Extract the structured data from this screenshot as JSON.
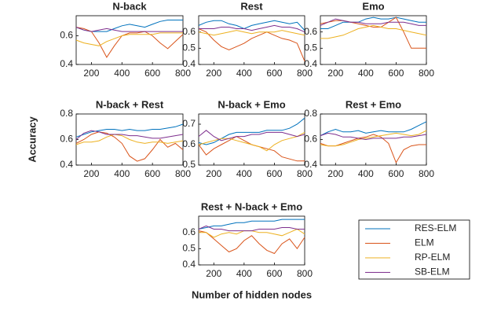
{
  "chart_data": [
    {
      "type": "line",
      "title": "N-back",
      "x": [
        100,
        150,
        200,
        250,
        300,
        350,
        400,
        450,
        500,
        550,
        600,
        650,
        700,
        750,
        800
      ],
      "xlim": [
        100,
        800
      ],
      "xticks": [
        200,
        400,
        600,
        800
      ],
      "ylim": [
        0.4,
        0.74
      ],
      "yticks": [
        0.4,
        0.6
      ],
      "series": [
        {
          "name": "RES-ELM",
          "color": "#0072bd",
          "values": [
            0.66,
            0.64,
            0.63,
            0.63,
            0.63,
            0.65,
            0.67,
            0.68,
            0.67,
            0.66,
            0.68,
            0.7,
            0.71,
            0.71,
            0.71
          ]
        },
        {
          "name": "ELM",
          "color": "#d95319",
          "values": [
            0.66,
            0.65,
            0.63,
            0.55,
            0.45,
            0.53,
            0.6,
            0.62,
            0.62,
            0.63,
            0.6,
            0.55,
            0.51,
            0.56,
            0.61
          ]
        },
        {
          "name": "RP-ELM",
          "color": "#edb120",
          "values": [
            0.57,
            0.55,
            0.54,
            0.53,
            0.56,
            0.58,
            0.6,
            0.61,
            0.61,
            0.61,
            0.61,
            0.62,
            0.62,
            0.62,
            0.62
          ]
        },
        {
          "name": "SB-ELM",
          "color": "#7e2f8e",
          "values": [
            0.66,
            0.64,
            0.63,
            0.64,
            0.65,
            0.64,
            0.63,
            0.63,
            0.63,
            0.63,
            0.63,
            0.63,
            0.63,
            0.63,
            0.63
          ]
        }
      ]
    },
    {
      "type": "line",
      "title": "Rest",
      "x": [
        100,
        150,
        200,
        250,
        300,
        350,
        400,
        450,
        500,
        550,
        600,
        650,
        700,
        750,
        800
      ],
      "xlim": [
        100,
        800
      ],
      "xticks": [
        200,
        400,
        600,
        800
      ],
      "ylim": [
        0.4,
        0.7
      ],
      "yticks": [
        0.4,
        0.5,
        0.6
      ],
      "series": [
        {
          "name": "RES-ELM",
          "color": "#0072bd",
          "values": [
            0.64,
            0.66,
            0.67,
            0.67,
            0.65,
            0.64,
            0.62,
            0.64,
            0.65,
            0.66,
            0.67,
            0.66,
            0.65,
            0.66,
            0.61
          ]
        },
        {
          "name": "ELM",
          "color": "#d95319",
          "values": [
            0.62,
            0.6,
            0.55,
            0.51,
            0.49,
            0.51,
            0.53,
            0.56,
            0.58,
            0.6,
            0.58,
            0.56,
            0.55,
            0.53,
            0.42
          ]
        },
        {
          "name": "RP-ELM",
          "color": "#edb120",
          "values": [
            0.6,
            0.59,
            0.58,
            0.59,
            0.6,
            0.61,
            0.6,
            0.59,
            0.6,
            0.6,
            0.6,
            0.61,
            0.6,
            0.59,
            0.58
          ]
        },
        {
          "name": "SB-ELM",
          "color": "#7e2f8e",
          "values": [
            0.62,
            0.62,
            0.62,
            0.63,
            0.63,
            0.62,
            0.62,
            0.61,
            0.62,
            0.63,
            0.64,
            0.63,
            0.63,
            0.62,
            0.6
          ]
        }
      ]
    },
    {
      "type": "line",
      "title": "Emo",
      "x": [
        100,
        150,
        200,
        250,
        300,
        350,
        400,
        450,
        500,
        550,
        600,
        650,
        700,
        750,
        800
      ],
      "xlim": [
        100,
        800
      ],
      "xticks": [
        200,
        400,
        600,
        800
      ],
      "ylim": [
        0.4,
        0.7
      ],
      "yticks": [
        0.4,
        0.5,
        0.6
      ],
      "series": [
        {
          "name": "RES-ELM",
          "color": "#0072bd",
          "values": [
            0.62,
            0.62,
            0.64,
            0.66,
            0.66,
            0.66,
            0.68,
            0.69,
            0.68,
            0.68,
            0.69,
            0.68,
            0.67,
            0.66,
            0.66
          ]
        },
        {
          "name": "ELM",
          "color": "#d95319",
          "values": [
            0.65,
            0.66,
            0.67,
            0.67,
            0.66,
            0.65,
            0.64,
            0.63,
            0.63,
            0.66,
            0.69,
            0.6,
            0.5,
            0.5,
            0.5
          ]
        },
        {
          "name": "RP-ELM",
          "color": "#edb120",
          "values": [
            0.56,
            0.56,
            0.57,
            0.58,
            0.6,
            0.62,
            0.63,
            0.64,
            0.63,
            0.62,
            0.62,
            0.61,
            0.6,
            0.59,
            0.58
          ]
        },
        {
          "name": "SB-ELM",
          "color": "#7e2f8e",
          "values": [
            0.64,
            0.66,
            0.68,
            0.67,
            0.66,
            0.66,
            0.65,
            0.65,
            0.65,
            0.66,
            0.66,
            0.66,
            0.65,
            0.64,
            0.64
          ]
        }
      ]
    },
    {
      "type": "line",
      "title": "N-back + Rest",
      "ylabel": "Accuracy",
      "x": [
        100,
        150,
        200,
        250,
        300,
        350,
        400,
        450,
        500,
        550,
        600,
        650,
        700,
        750,
        800
      ],
      "xlim": [
        100,
        800
      ],
      "xticks": [
        200,
        400,
        600,
        800
      ],
      "ylim": [
        0.4,
        0.8
      ],
      "yticks": [
        0.4,
        0.6,
        0.8
      ],
      "series": [
        {
          "name": "RES-ELM",
          "color": "#0072bd",
          "values": [
            0.62,
            0.64,
            0.66,
            0.67,
            0.68,
            0.68,
            0.67,
            0.68,
            0.67,
            0.67,
            0.68,
            0.68,
            0.69,
            0.7,
            0.72
          ]
        },
        {
          "name": "ELM",
          "color": "#d95319",
          "values": [
            0.57,
            0.6,
            0.64,
            0.66,
            0.65,
            0.62,
            0.57,
            0.47,
            0.43,
            0.45,
            0.52,
            0.6,
            0.54,
            0.57,
            0.52
          ]
        },
        {
          "name": "RP-ELM",
          "color": "#edb120",
          "values": [
            0.56,
            0.58,
            0.58,
            0.59,
            0.62,
            0.64,
            0.63,
            0.6,
            0.58,
            0.57,
            0.58,
            0.58,
            0.57,
            0.58,
            0.59
          ]
        },
        {
          "name": "SB-ELM",
          "color": "#7e2f8e",
          "values": [
            0.6,
            0.65,
            0.67,
            0.66,
            0.64,
            0.64,
            0.64,
            0.63,
            0.63,
            0.62,
            0.61,
            0.61,
            0.62,
            0.63,
            0.64
          ]
        }
      ]
    },
    {
      "type": "line",
      "title": "N-back + Emo",
      "x": [
        100,
        150,
        200,
        250,
        300,
        350,
        400,
        450,
        500,
        550,
        600,
        650,
        700,
        750,
        800
      ],
      "xlim": [
        100,
        800
      ],
      "xticks": [
        200,
        400,
        600,
        800
      ],
      "ylim": [
        0.5,
        0.75
      ],
      "yticks": [
        0.5,
        0.6,
        0.7
      ],
      "series": [
        {
          "name": "RES-ELM",
          "color": "#0072bd",
          "values": [
            0.61,
            0.6,
            0.61,
            0.63,
            0.65,
            0.66,
            0.66,
            0.66,
            0.66,
            0.67,
            0.67,
            0.67,
            0.68,
            0.7,
            0.73
          ]
        },
        {
          "name": "ELM",
          "color": "#d95319",
          "values": [
            0.6,
            0.55,
            0.58,
            0.6,
            0.62,
            0.64,
            0.62,
            0.6,
            0.59,
            0.58,
            0.57,
            0.54,
            0.53,
            0.52,
            0.52
          ]
        },
        {
          "name": "RP-ELM",
          "color": "#edb120",
          "values": [
            0.6,
            0.61,
            0.62,
            0.63,
            0.63,
            0.62,
            0.61,
            0.6,
            0.59,
            0.57,
            0.6,
            0.62,
            0.63,
            0.64,
            0.66
          ]
        },
        {
          "name": "SB-ELM",
          "color": "#7e2f8e",
          "values": [
            0.64,
            0.67,
            0.64,
            0.62,
            0.63,
            0.64,
            0.64,
            0.65,
            0.65,
            0.66,
            0.66,
            0.66,
            0.65,
            0.64,
            0.65
          ]
        }
      ]
    },
    {
      "type": "line",
      "title": "Rest + Emo",
      "x": [
        100,
        150,
        200,
        250,
        300,
        350,
        400,
        450,
        500,
        550,
        600,
        650,
        700,
        750,
        800
      ],
      "xlim": [
        100,
        800
      ],
      "xticks": [
        200,
        400,
        600,
        800
      ],
      "ylim": [
        0.4,
        0.8
      ],
      "yticks": [
        0.4,
        0.6,
        0.8
      ],
      "series": [
        {
          "name": "RES-ELM",
          "color": "#0072bd",
          "values": [
            0.63,
            0.66,
            0.68,
            0.66,
            0.66,
            0.67,
            0.65,
            0.66,
            0.67,
            0.66,
            0.66,
            0.66,
            0.68,
            0.71,
            0.74
          ]
        },
        {
          "name": "ELM",
          "color": "#d95319",
          "values": [
            0.57,
            0.55,
            0.55,
            0.57,
            0.59,
            0.61,
            0.62,
            0.64,
            0.62,
            0.57,
            0.42,
            0.52,
            0.55,
            0.56,
            0.56
          ]
        },
        {
          "name": "RP-ELM",
          "color": "#edb120",
          "values": [
            0.56,
            0.55,
            0.55,
            0.56,
            0.58,
            0.6,
            0.61,
            0.62,
            0.63,
            0.64,
            0.65,
            0.64,
            0.63,
            0.64,
            0.67
          ]
        },
        {
          "name": "SB-ELM",
          "color": "#7e2f8e",
          "values": [
            0.63,
            0.65,
            0.64,
            0.62,
            0.62,
            0.61,
            0.6,
            0.61,
            0.61,
            0.61,
            0.61,
            0.62,
            0.62,
            0.63,
            0.64
          ]
        }
      ]
    },
    {
      "type": "line",
      "title": "Rest + N-back + Emo",
      "xlabel": "Number of hidden nodes",
      "x": [
        100,
        150,
        200,
        250,
        300,
        350,
        400,
        450,
        500,
        550,
        600,
        650,
        700,
        750,
        800
      ],
      "xlim": [
        100,
        800
      ],
      "xticks": [
        200,
        400,
        600,
        800
      ],
      "ylim": [
        0.4,
        0.7
      ],
      "yticks": [
        0.4,
        0.5,
        0.6
      ],
      "series": [
        {
          "name": "RES-ELM",
          "color": "#0072bd",
          "values": [
            0.62,
            0.63,
            0.64,
            0.64,
            0.65,
            0.66,
            0.66,
            0.67,
            0.67,
            0.67,
            0.67,
            0.68,
            0.68,
            0.68,
            0.68
          ]
        },
        {
          "name": "ELM",
          "color": "#d95319",
          "values": [
            0.61,
            0.6,
            0.56,
            0.52,
            0.48,
            0.5,
            0.55,
            0.58,
            0.53,
            0.49,
            0.47,
            0.53,
            0.56,
            0.5,
            0.57
          ]
        },
        {
          "name": "RP-ELM",
          "color": "#edb120",
          "values": [
            0.6,
            0.6,
            0.57,
            0.59,
            0.6,
            0.59,
            0.61,
            0.61,
            0.6,
            0.6,
            0.59,
            0.58,
            0.6,
            0.62,
            0.59
          ]
        },
        {
          "name": "SB-ELM",
          "color": "#7e2f8e",
          "values": [
            0.62,
            0.64,
            0.62,
            0.62,
            0.61,
            0.61,
            0.61,
            0.61,
            0.62,
            0.62,
            0.62,
            0.63,
            0.63,
            0.62,
            0.62
          ]
        }
      ]
    }
  ]
}
